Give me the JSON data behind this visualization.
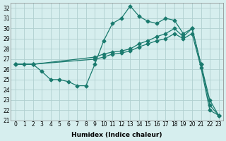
{
  "xlabel": "Humidex (Indice chaleur)",
  "ylabel": "",
  "background_color": "#d6eeee",
  "grid_color": "#b0d0d0",
  "line_color": "#1a7a6e",
  "xlim": [
    -0.5,
    23.5
  ],
  "ylim": [
    21,
    32.5
  ],
  "yticks": [
    21,
    22,
    23,
    24,
    25,
    26,
    27,
    28,
    29,
    30,
    31,
    32
  ],
  "xticks": [
    0,
    1,
    2,
    3,
    4,
    5,
    6,
    7,
    8,
    9,
    10,
    11,
    12,
    13,
    14,
    15,
    16,
    17,
    18,
    19,
    20,
    21,
    22,
    23
  ],
  "line1_x": [
    0,
    1,
    2,
    3,
    4,
    5,
    6,
    7,
    8,
    9,
    10,
    11,
    12,
    13,
    14,
    15,
    16,
    17,
    18,
    19,
    20,
    21,
    22,
    23
  ],
  "line1_y": [
    26.5,
    26.5,
    26.5,
    25.8,
    25.0,
    25.0,
    24.8,
    24.4,
    24.4,
    26.5,
    28.8,
    30.5,
    31.0,
    32.2,
    31.2,
    30.7,
    30.5,
    31.0,
    30.8,
    29.5,
    30.0,
    26.5,
    23.0,
    21.5
  ],
  "line2_x": [
    0,
    2,
    9,
    10,
    11,
    12,
    13,
    14,
    15,
    16,
    17,
    18,
    19,
    20,
    21,
    22,
    23
  ],
  "line2_y": [
    26.5,
    26.5,
    27.2,
    27.5,
    27.7,
    27.8,
    28.0,
    28.5,
    28.8,
    29.2,
    29.5,
    30.0,
    29.2,
    30.0,
    26.5,
    22.5,
    21.5
  ],
  "line3_x": [
    0,
    2,
    9,
    10,
    11,
    12,
    13,
    14,
    15,
    16,
    17,
    18,
    19,
    20,
    21,
    22,
    23
  ],
  "line3_y": [
    26.5,
    26.5,
    27.0,
    27.2,
    27.5,
    27.6,
    27.8,
    28.2,
    28.5,
    28.8,
    29.0,
    29.5,
    29.0,
    29.5,
    26.2,
    22.0,
    21.5
  ]
}
